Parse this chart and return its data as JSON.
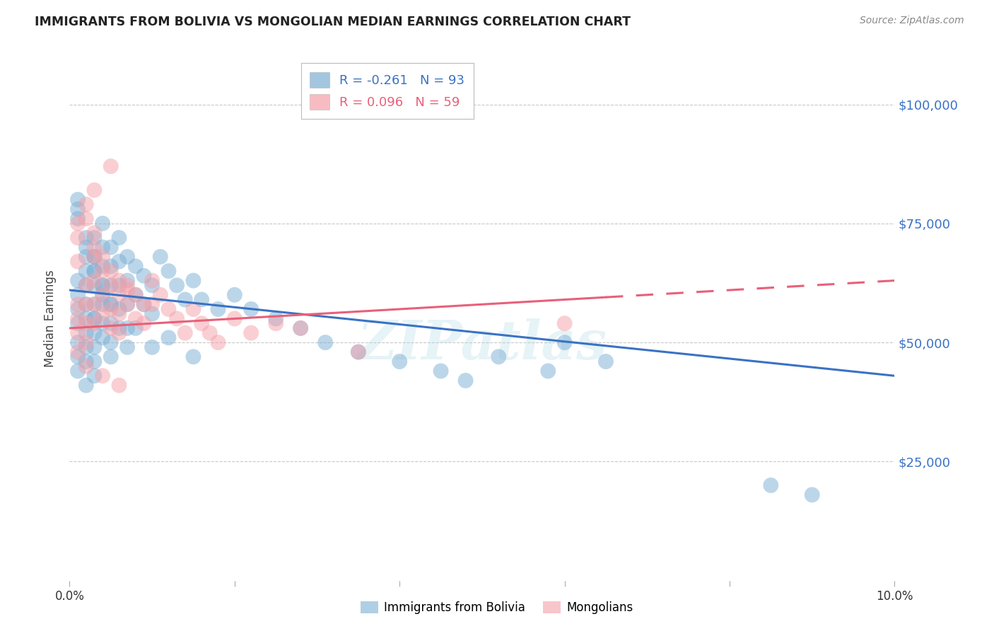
{
  "title": "IMMIGRANTS FROM BOLIVIA VS MONGOLIAN MEDIAN EARNINGS CORRELATION CHART",
  "source": "Source: ZipAtlas.com",
  "ylabel": "Median Earnings",
  "y_tick_labels": [
    "$25,000",
    "$50,000",
    "$75,000",
    "$100,000"
  ],
  "y_tick_values": [
    25000,
    50000,
    75000,
    100000
  ],
  "xlim": [
    0.0,
    0.1
  ],
  "ylim": [
    0,
    110000
  ],
  "bolivia_R": -0.261,
  "bolivia_N": 93,
  "mongolian_R": 0.096,
  "mongolian_N": 59,
  "bolivia_color": "#7BAFD4",
  "mongolian_color": "#F4A0A8",
  "bolivia_line_color": "#3A72C4",
  "mongolian_line_color": "#E8607A",
  "background_color": "#FFFFFF",
  "grid_color": "#C8C8C8",
  "title_color": "#222222",
  "axis_label_color": "#3A72C4",
  "watermark": "ZIPatlas",
  "bolivia_line_x0": 0.0,
  "bolivia_line_y0": 61000,
  "bolivia_line_x1": 0.1,
  "bolivia_line_y1": 43000,
  "mongolian_line_x0": 0.0,
  "mongolian_line_y0": 53000,
  "mongolian_line_x1": 0.1,
  "mongolian_line_y1": 63000,
  "mongolian_line_solid_end": 0.065,
  "bolivia_x": [
    0.001,
    0.001,
    0.001,
    0.001,
    0.001,
    0.001,
    0.002,
    0.002,
    0.002,
    0.002,
    0.002,
    0.002,
    0.002,
    0.002,
    0.003,
    0.003,
    0.003,
    0.003,
    0.003,
    0.003,
    0.003,
    0.003,
    0.003,
    0.003,
    0.004,
    0.004,
    0.004,
    0.004,
    0.004,
    0.004,
    0.005,
    0.005,
    0.005,
    0.005,
    0.005,
    0.005,
    0.006,
    0.006,
    0.006,
    0.006,
    0.007,
    0.007,
    0.007,
    0.007,
    0.008,
    0.008,
    0.009,
    0.009,
    0.01,
    0.01,
    0.011,
    0.012,
    0.013,
    0.014,
    0.015,
    0.016,
    0.018,
    0.02,
    0.022,
    0.025,
    0.028,
    0.031,
    0.035,
    0.04,
    0.045,
    0.048,
    0.052,
    0.058,
    0.06,
    0.065,
    0.001,
    0.001,
    0.001,
    0.002,
    0.002,
    0.003,
    0.003,
    0.004,
    0.004,
    0.005,
    0.001,
    0.002,
    0.003,
    0.004,
    0.005,
    0.006,
    0.007,
    0.008,
    0.01,
    0.012,
    0.015,
    0.085,
    0.09
  ],
  "bolivia_y": [
    63000,
    60000,
    57000,
    54000,
    50000,
    47000,
    68000,
    65000,
    62000,
    58000,
    55000,
    52000,
    49000,
    46000,
    72000,
    68000,
    65000,
    62000,
    58000,
    55000,
    52000,
    49000,
    46000,
    43000,
    75000,
    70000,
    66000,
    62000,
    58000,
    54000,
    70000,
    66000,
    62000,
    58000,
    54000,
    50000,
    72000,
    67000,
    62000,
    57000,
    68000,
    63000,
    58000,
    53000,
    66000,
    60000,
    64000,
    58000,
    62000,
    56000,
    68000,
    65000,
    62000,
    59000,
    63000,
    59000,
    57000,
    60000,
    57000,
    55000,
    53000,
    50000,
    48000,
    46000,
    44000,
    42000,
    47000,
    44000,
    50000,
    46000,
    80000,
    78000,
    76000,
    72000,
    70000,
    68000,
    65000,
    62000,
    60000,
    58000,
    44000,
    41000,
    55000,
    51000,
    47000,
    53000,
    49000,
    53000,
    49000,
    51000,
    47000,
    20000,
    18000
  ],
  "mongolian_x": [
    0.001,
    0.001,
    0.001,
    0.001,
    0.002,
    0.002,
    0.002,
    0.002,
    0.003,
    0.003,
    0.003,
    0.003,
    0.004,
    0.004,
    0.004,
    0.005,
    0.005,
    0.005,
    0.006,
    0.006,
    0.006,
    0.007,
    0.007,
    0.008,
    0.008,
    0.009,
    0.009,
    0.01,
    0.01,
    0.011,
    0.012,
    0.013,
    0.014,
    0.015,
    0.016,
    0.017,
    0.018,
    0.02,
    0.022,
    0.025,
    0.001,
    0.001,
    0.002,
    0.002,
    0.003,
    0.003,
    0.004,
    0.005,
    0.006,
    0.007,
    0.001,
    0.002,
    0.004,
    0.006,
    0.003,
    0.005,
    0.028,
    0.06,
    0.035
  ],
  "mongolian_y": [
    58000,
    55000,
    52000,
    67000,
    62000,
    58000,
    54000,
    50000,
    68000,
    63000,
    58000,
    54000,
    65000,
    60000,
    56000,
    62000,
    57000,
    53000,
    60000,
    56000,
    52000,
    62000,
    58000,
    60000,
    55000,
    58000,
    54000,
    63000,
    58000,
    60000,
    57000,
    55000,
    52000,
    57000,
    54000,
    52000,
    50000,
    55000,
    52000,
    54000,
    75000,
    72000,
    79000,
    76000,
    73000,
    70000,
    68000,
    65000,
    63000,
    61000,
    48000,
    45000,
    43000,
    41000,
    82000,
    87000,
    53000,
    54000,
    48000
  ],
  "x_ticks": [
    0.0,
    0.02,
    0.04,
    0.06,
    0.08,
    0.1
  ],
  "x_tick_show": [
    true,
    false,
    false,
    false,
    false,
    true
  ]
}
